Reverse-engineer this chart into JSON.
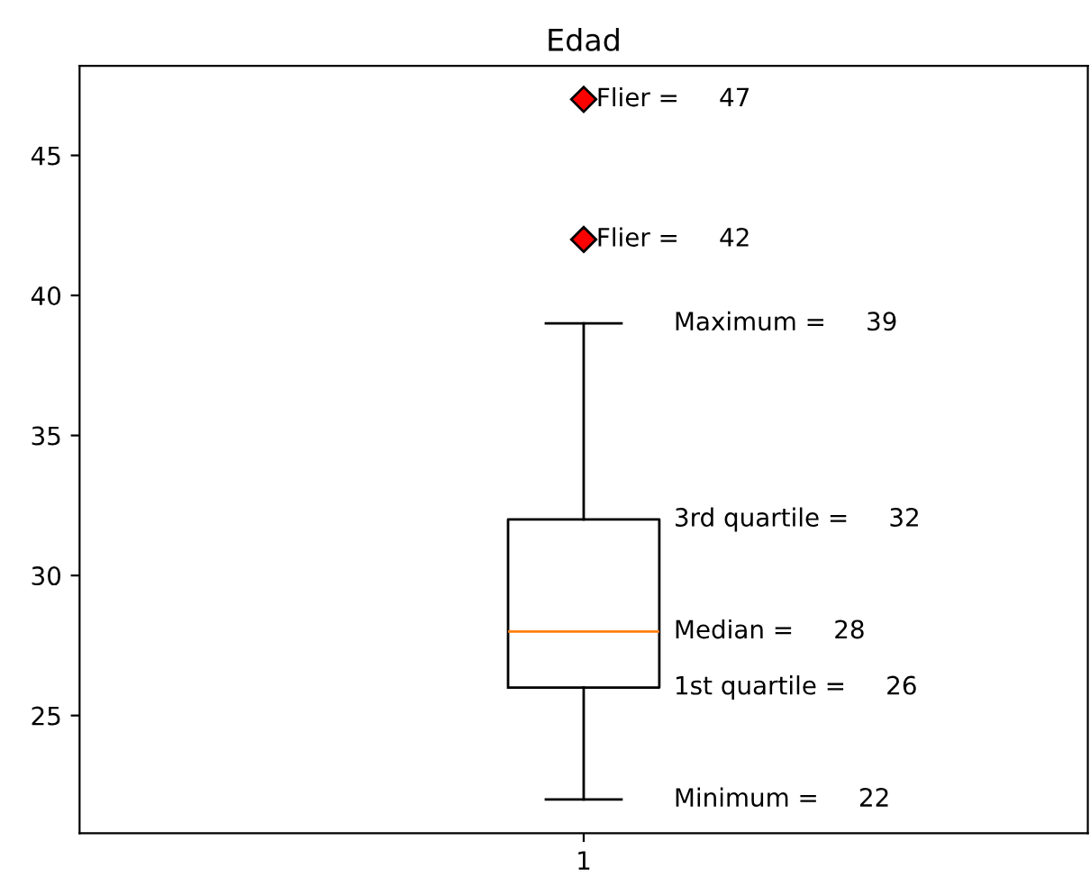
{
  "chart_data": {
    "type": "box",
    "title": "Edad",
    "categories": [
      "1"
    ],
    "boxes": [
      {
        "low": 22,
        "q1": 26,
        "median": 28,
        "q3": 32,
        "high": 39,
        "outliers": [
          42,
          47
        ]
      }
    ],
    "ylim": [
      20.8,
      48.2
    ],
    "yticks": [
      25,
      30,
      35,
      40,
      45
    ],
    "marker": "diamond",
    "grid": false,
    "annotations": [
      "Flier =     47",
      "Flier =     42",
      "Maximum =     39",
      "3rd quartile =     32",
      "Median =     28",
      "1st quartile =     26",
      "Minimum =     22"
    ]
  }
}
